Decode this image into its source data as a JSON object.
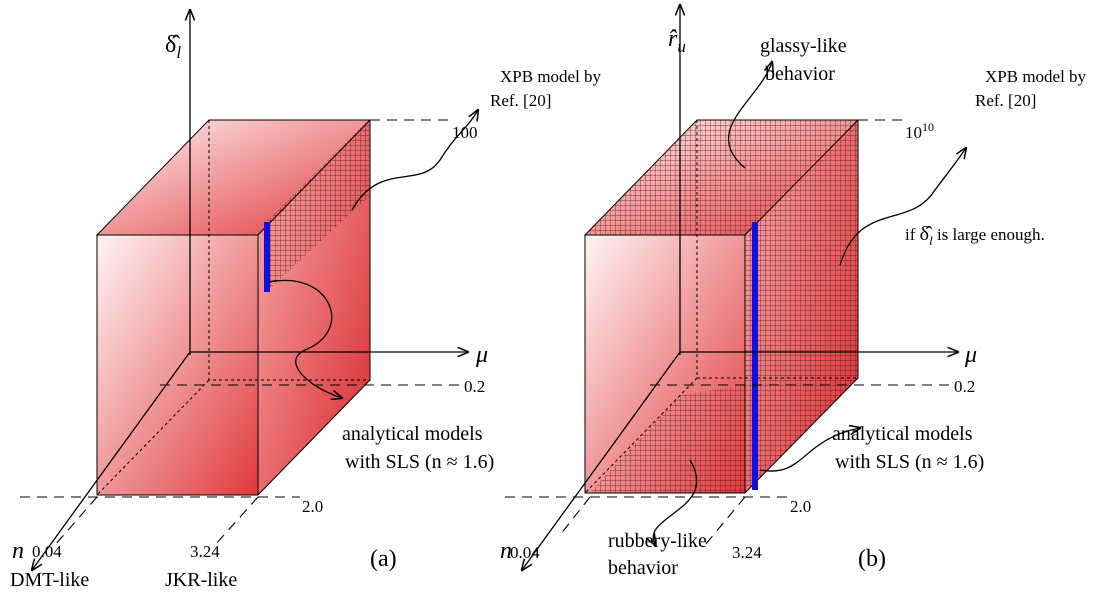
{
  "panel_a": {
    "label": "(a)",
    "y_axis": {
      "symbol": "δ̂",
      "sub": "l"
    },
    "x_axis": "μ",
    "z_axis": "n",
    "y_tick": "100",
    "x_tick": "0.2",
    "z_tick": "2.0",
    "n_ticks": [
      "0.04",
      "3.24"
    ],
    "regimes": [
      "DMT-like",
      "JKR-like"
    ],
    "xpb": [
      "XPB model by",
      "Ref. [20]"
    ],
    "analytical": [
      "analytical models",
      "with SLS (n ≈ 1.6)"
    ]
  },
  "panel_b": {
    "label": "(b)",
    "y_axis": {
      "symbol": "r̂",
      "sub": "u"
    },
    "x_axis": "μ",
    "z_axis": "n",
    "y_tick": {
      "base": "10",
      "exp": "10"
    },
    "x_tick": "0.2",
    "z_tick": "2.0",
    "n_ticks": [
      "0.04",
      "3.24"
    ],
    "glassy": [
      "glassy-like",
      "behavior"
    ],
    "rubbery": [
      "rubbery-like",
      "behavior"
    ],
    "xpb": [
      "XPB model by",
      "Ref. [20]"
    ],
    "condition": {
      "before": "if ",
      "symbol": "δ̂",
      "sub": "l",
      "after": " is large enough."
    },
    "analytical": [
      "analytical models",
      "with SLS (n ≈ 1.6)"
    ]
  }
}
